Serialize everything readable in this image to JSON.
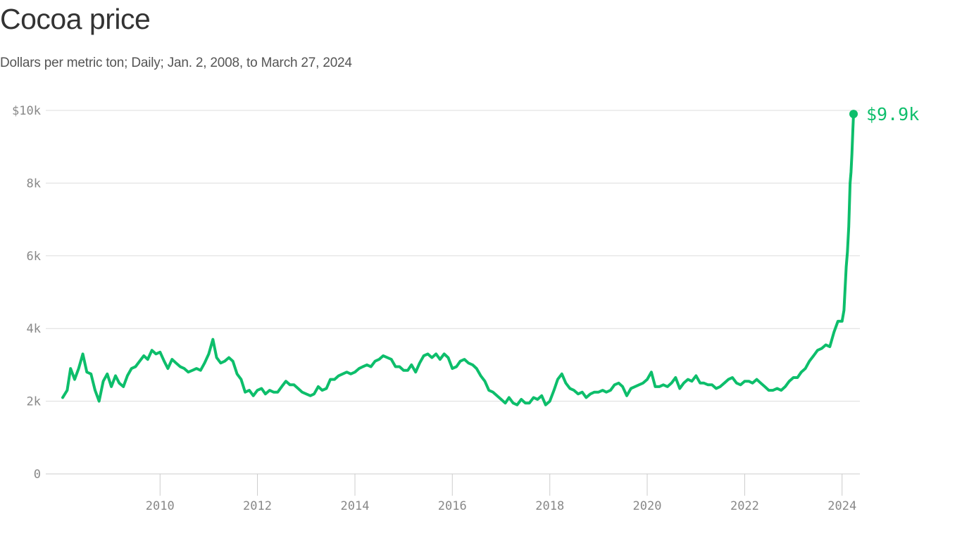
{
  "header": {
    "title": "Cocoa price",
    "subtitle": "Dollars per metric ton; Daily; Jan. 2, 2008, to March 27, 2024"
  },
  "colors": {
    "line": "#0dbe6b",
    "grid": "#dddddd",
    "axis": "#cccccc",
    "tick_text": "#888888"
  },
  "chart_data": {
    "type": "line",
    "title": "Cocoa price",
    "subtitle": "Dollars per metric ton; Daily; Jan. 2, 2008, to March 27, 2024",
    "ylim": [
      0,
      10000
    ],
    "xlim": [
      "2008-01-02",
      "2024-03-27"
    ],
    "grid": true,
    "y_ticks": [
      0,
      2000,
      4000,
      6000,
      8000,
      10000
    ],
    "y_tick_labels": [
      "0",
      "2k",
      "4k",
      "6k",
      "8k",
      "$10k"
    ],
    "x_ticks": [
      "2010-01-01",
      "2012-01-01",
      "2014-01-01",
      "2016-01-01",
      "2018-01-01",
      "2020-01-01",
      "2022-01-01",
      "2024-01-01"
    ],
    "x_tick_labels": [
      "2010",
      "2012",
      "2014",
      "2016",
      "2018",
      "2020",
      "2022",
      "2024"
    ],
    "end_label": "$9.9k",
    "series": [
      {
        "x": [
          "2008-01-02",
          "2008-02-05",
          "2008-03-01",
          "2008-04-01",
          "2008-05-01",
          "2008-06-01",
          "2008-07-01",
          "2008-08-01",
          "2008-09-01",
          "2008-10-01",
          "2008-11-01",
          "2008-12-01",
          "2009-01-01",
          "2009-02-01",
          "2009-03-01",
          "2009-04-01",
          "2009-05-01",
          "2009-06-01",
          "2009-07-01",
          "2009-08-01",
          "2009-09-01",
          "2009-10-01",
          "2009-11-01",
          "2009-12-01",
          "2010-01-01",
          "2010-02-01",
          "2010-03-01",
          "2010-04-01",
          "2010-05-01",
          "2010-06-01",
          "2010-07-01",
          "2010-08-01",
          "2010-09-01",
          "2010-10-01",
          "2010-11-01",
          "2010-12-01",
          "2011-01-01",
          "2011-02-01",
          "2011-03-01",
          "2011-04-01",
          "2011-05-01",
          "2011-06-01",
          "2011-07-01",
          "2011-08-01",
          "2011-09-01",
          "2011-10-01",
          "2011-11-01",
          "2011-12-01",
          "2012-01-01",
          "2012-02-01",
          "2012-03-01",
          "2012-04-01",
          "2012-05-01",
          "2012-06-01",
          "2012-07-01",
          "2012-08-01",
          "2012-09-01",
          "2012-10-01",
          "2012-11-01",
          "2012-12-01",
          "2013-01-01",
          "2013-02-01",
          "2013-03-01",
          "2013-04-01",
          "2013-05-01",
          "2013-06-01",
          "2013-07-01",
          "2013-08-01",
          "2013-09-01",
          "2013-10-01",
          "2013-11-01",
          "2013-12-01",
          "2014-01-01",
          "2014-02-01",
          "2014-03-01",
          "2014-04-01",
          "2014-05-01",
          "2014-06-01",
          "2014-07-01",
          "2014-08-01",
          "2014-09-01",
          "2014-10-01",
          "2014-11-01",
          "2014-12-01",
          "2015-01-01",
          "2015-02-01",
          "2015-03-01",
          "2015-04-01",
          "2015-05-01",
          "2015-06-01",
          "2015-07-01",
          "2015-08-01",
          "2015-09-01",
          "2015-10-01",
          "2015-11-01",
          "2015-12-01",
          "2016-01-01",
          "2016-02-01",
          "2016-03-01",
          "2016-04-01",
          "2016-05-01",
          "2016-06-01",
          "2016-07-01",
          "2016-08-01",
          "2016-09-01",
          "2016-10-01",
          "2016-11-01",
          "2016-12-01",
          "2017-01-01",
          "2017-02-01",
          "2017-03-01",
          "2017-04-01",
          "2017-05-01",
          "2017-06-01",
          "2017-07-01",
          "2017-08-01",
          "2017-09-01",
          "2017-10-01",
          "2017-11-01",
          "2017-12-01",
          "2018-01-01",
          "2018-02-01",
          "2018-03-01",
          "2018-04-01",
          "2018-05-01",
          "2018-06-01",
          "2018-07-01",
          "2018-08-01",
          "2018-09-01",
          "2018-10-01",
          "2018-11-01",
          "2018-12-01",
          "2019-01-01",
          "2019-02-01",
          "2019-03-01",
          "2019-04-01",
          "2019-05-01",
          "2019-06-01",
          "2019-07-01",
          "2019-08-01",
          "2019-09-01",
          "2019-10-01",
          "2019-11-01",
          "2019-12-01",
          "2020-01-01",
          "2020-02-01",
          "2020-03-01",
          "2020-04-01",
          "2020-05-01",
          "2020-06-01",
          "2020-07-01",
          "2020-08-01",
          "2020-09-01",
          "2020-10-01",
          "2020-11-01",
          "2020-12-01",
          "2021-01-01",
          "2021-02-01",
          "2021-03-01",
          "2021-04-01",
          "2021-05-01",
          "2021-06-01",
          "2021-07-01",
          "2021-08-01",
          "2021-09-01",
          "2021-10-01",
          "2021-11-01",
          "2021-12-01",
          "2022-01-01",
          "2022-02-01",
          "2022-03-01",
          "2022-04-01",
          "2022-05-01",
          "2022-06-01",
          "2022-07-01",
          "2022-08-01",
          "2022-09-01",
          "2022-10-01",
          "2022-11-01",
          "2022-12-01",
          "2023-01-01",
          "2023-02-01",
          "2023-03-01",
          "2023-04-01",
          "2023-05-01",
          "2023-06-01",
          "2023-07-01",
          "2023-08-01",
          "2023-09-01",
          "2023-10-01",
          "2023-11-01",
          "2023-12-01",
          "2024-01-01",
          "2024-01-15",
          "2024-02-01",
          "2024-02-10",
          "2024-02-20",
          "2024-03-01",
          "2024-03-08",
          "2024-03-15",
          "2024-03-22",
          "2024-03-27"
        ],
        "y": [
          2100,
          2300,
          2900,
          2600,
          2900,
          3300,
          2800,
          2750,
          2300,
          2000,
          2550,
          2750,
          2400,
          2700,
          2500,
          2400,
          2700,
          2900,
          2950,
          3100,
          3250,
          3150,
          3400,
          3300,
          3350,
          3100,
          2900,
          3150,
          3050,
          2950,
          2900,
          2800,
          2850,
          2900,
          2850,
          3050,
          3300,
          3700,
          3200,
          3050,
          3100,
          3200,
          3100,
          2750,
          2600,
          2250,
          2300,
          2150,
          2300,
          2350,
          2200,
          2300,
          2250,
          2250,
          2400,
          2550,
          2450,
          2450,
          2350,
          2250,
          2200,
          2150,
          2200,
          2400,
          2300,
          2350,
          2600,
          2600,
          2700,
          2750,
          2800,
          2750,
          2800,
          2900,
          2950,
          3000,
          2950,
          3100,
          3150,
          3250,
          3200,
          3150,
          2950,
          2950,
          2850,
          2850,
          3000,
          2800,
          3050,
          3250,
          3300,
          3200,
          3300,
          3150,
          3300,
          3200,
          2900,
          2950,
          3100,
          3150,
          3050,
          3000,
          2900,
          2700,
          2550,
          2300,
          2250,
          2150,
          2050,
          1950,
          2100,
          1950,
          1900,
          2050,
          1950,
          1950,
          2100,
          2050,
          2150,
          1900,
          2000,
          2300,
          2600,
          2750,
          2500,
          2350,
          2300,
          2200,
          2250,
          2100,
          2200,
          2250,
          2250,
          2300,
          2250,
          2300,
          2450,
          2500,
          2400,
          2150,
          2350,
          2400,
          2450,
          2500,
          2600,
          2800,
          2400,
          2400,
          2450,
          2400,
          2500,
          2650,
          2350,
          2500,
          2600,
          2550,
          2700,
          2500,
          2500,
          2450,
          2450,
          2350,
          2400,
          2500,
          2600,
          2650,
          2500,
          2450,
          2550,
          2550,
          2500,
          2600,
          2500,
          2400,
          2300,
          2300,
          2350,
          2300,
          2400,
          2550,
          2650,
          2650,
          2800,
          2900,
          3100,
          3250,
          3400,
          3450,
          3550,
          3500,
          3900,
          4200,
          4200,
          4500,
          5700,
          6100,
          6800,
          8000,
          8300,
          8800,
          9500,
          9900
        ]
      }
    ]
  }
}
